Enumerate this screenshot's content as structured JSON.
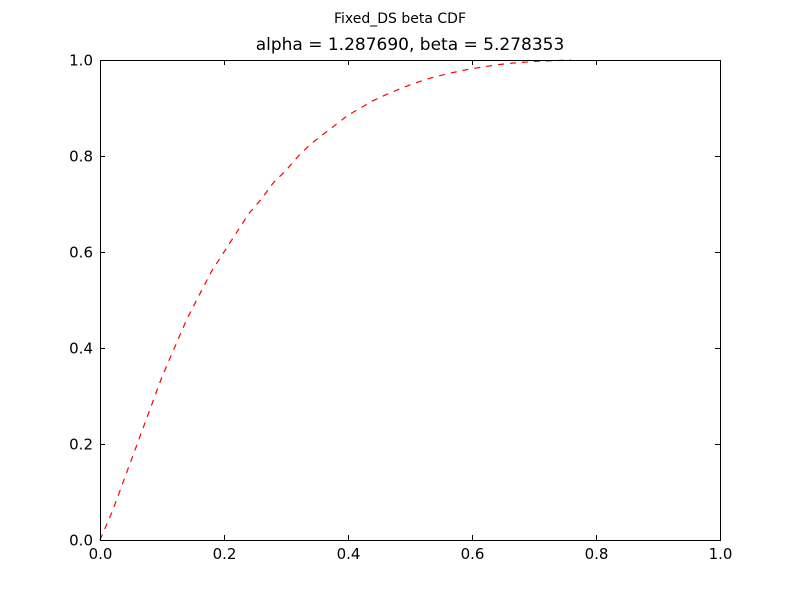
{
  "chart_data": {
    "type": "line",
    "suptitle": "Fixed_DS beta CDF",
    "title": "alpha = 1.287690, beta = 5.278353",
    "xlabel": "",
    "ylabel": "",
    "xlim": [
      0.0,
      1.0
    ],
    "ylim": [
      0.0,
      1.0
    ],
    "x_ticks": [
      "0.0",
      "0.2",
      "0.4",
      "0.6",
      "0.8",
      "1.0"
    ],
    "y_ticks": [
      "0.0",
      "0.2",
      "0.4",
      "0.6",
      "0.8",
      "1.0"
    ],
    "grid": false,
    "series": [
      {
        "color": "#ff0000",
        "line_style": "dashed",
        "x": [
          0.0,
          0.02,
          0.04,
          0.06,
          0.08,
          0.1,
          0.12,
          0.14,
          0.16,
          0.18,
          0.2,
          0.22,
          0.24,
          0.26,
          0.28,
          0.3,
          0.32,
          0.34,
          0.36,
          0.38,
          0.4,
          0.42,
          0.44,
          0.46,
          0.48,
          0.5,
          0.52,
          0.54,
          0.56,
          0.58,
          0.6,
          0.62,
          0.64,
          0.66,
          0.68,
          0.7,
          0.72,
          0.74,
          0.76
        ],
        "y": [
          0.0,
          0.06,
          0.13,
          0.2,
          0.27,
          0.34,
          0.4,
          0.46,
          0.51,
          0.56,
          0.6,
          0.64,
          0.68,
          0.71,
          0.745,
          0.77,
          0.8,
          0.825,
          0.845,
          0.865,
          0.885,
          0.9,
          0.915,
          0.927,
          0.938,
          0.948,
          0.957,
          0.965,
          0.971,
          0.977,
          0.982,
          0.986,
          0.99,
          0.993,
          0.995,
          0.997,
          0.998,
          0.999,
          1.0
        ]
      }
    ]
  }
}
